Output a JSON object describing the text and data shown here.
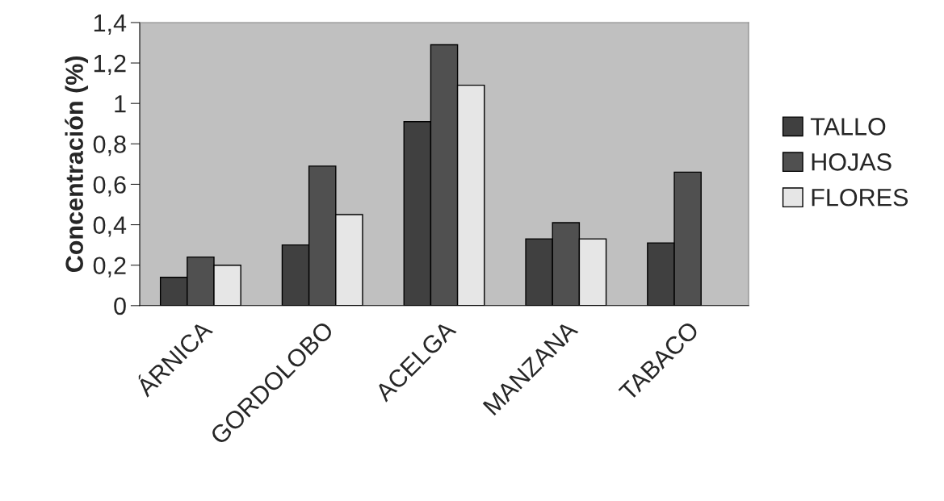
{
  "chart_data": {
    "type": "bar",
    "ylabel": "Concentración (%)",
    "categories": [
      "ÁRNICA",
      "GORDOLOBO",
      "ACELGA",
      "MANZANA",
      "TABACO"
    ],
    "series": [
      {
        "name": "TALLO",
        "color": "#404040",
        "values": [
          0.14,
          0.3,
          0.91,
          0.33,
          0.31
        ]
      },
      {
        "name": "HOJAS",
        "color": "#505050",
        "values": [
          0.24,
          0.69,
          1.29,
          0.41,
          0.66
        ]
      },
      {
        "name": "FLORES",
        "color": "#e6e6e6",
        "values": [
          0.2,
          0.45,
          1.09,
          0.33,
          null
        ]
      }
    ],
    "ylim": [
      0,
      1.4
    ],
    "yticks": [
      0,
      {
        "value": 0.2,
        "label": "0,2"
      },
      {
        "value": 0.4,
        "label": "0,4"
      },
      {
        "value": 0.6,
        "label": "0,6"
      },
      {
        "value": 0.8,
        "label": "0,8"
      },
      1,
      {
        "value": 1.2,
        "label": "1,2"
      },
      {
        "value": 1.4,
        "label": "1,4"
      }
    ],
    "grid": false,
    "legend": "right"
  }
}
